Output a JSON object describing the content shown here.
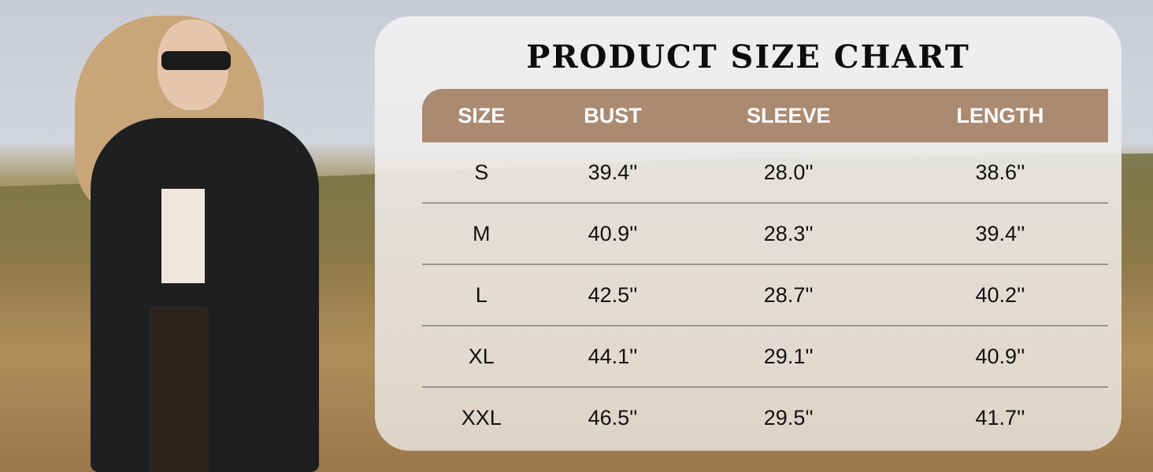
{
  "chart_data": {
    "type": "table",
    "title": "PRODUCT SIZE CHART",
    "columns": [
      "SIZE",
      "BUST",
      "SLEEVE",
      "LENGTH"
    ],
    "rows": [
      [
        "S",
        "39.4''",
        "28.0''",
        "38.6''"
      ],
      [
        "M",
        "40.9''",
        "28.3''",
        "39.4''"
      ],
      [
        "L",
        "42.5''",
        "28.7''",
        "40.2''"
      ],
      [
        "XL",
        "44.1''",
        "29.1''",
        "40.9''"
      ],
      [
        "XXL",
        "46.5''",
        "29.5''",
        "41.7''"
      ]
    ]
  },
  "colors": {
    "header_bg": "#ab8a72",
    "header_text": "#ffffff",
    "title": "#0d0d0d"
  }
}
